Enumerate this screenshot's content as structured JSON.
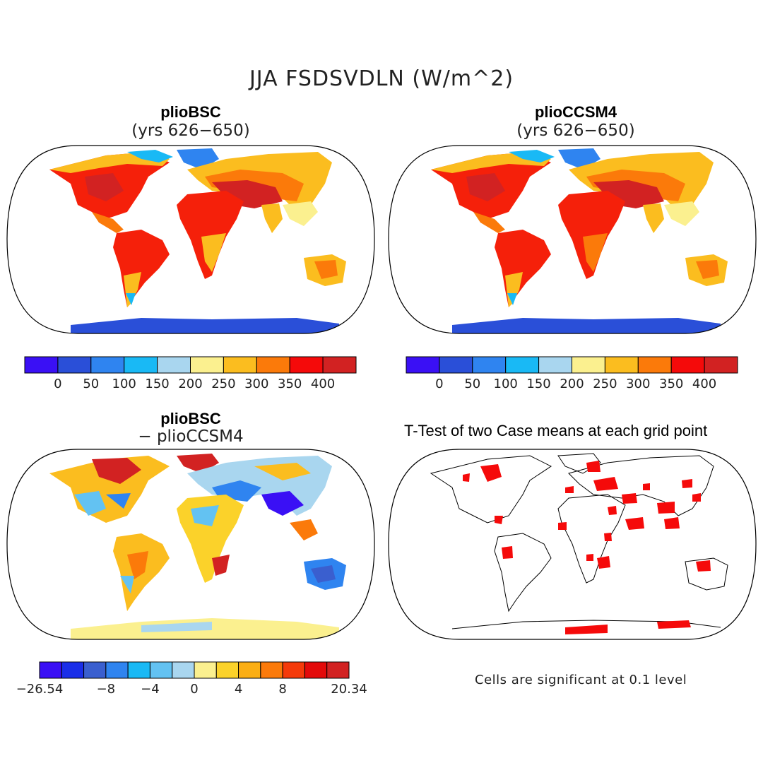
{
  "title": "JJA FSDSVDLN (W/m^2)",
  "panels": {
    "top_left": {
      "title": "plioBSC",
      "subtitle": "(yrs 626−650)"
    },
    "top_right": {
      "title": "plioCCSM4",
      "subtitle": "(yrs 626−650)"
    },
    "bottom_left": {
      "title": "plioBSC",
      "subtitle": "− plioCCSM4"
    },
    "bottom_right": {
      "title": "T-Test of two Case means at each grid point",
      "note": "Cells are significant at 0.1 level"
    }
  },
  "colorbar_abs": {
    "labels": [
      "0",
      "50",
      "100",
      "150",
      "200",
      "250",
      "300",
      "350",
      "400"
    ],
    "colors": [
      "#3a10f5",
      "#2a4fd8",
      "#2f84f0",
      "#19b9f5",
      "#a9d6ef",
      "#fbf08f",
      "#fbbd1f",
      "#fb7a0a",
      "#f50a0a",
      "#d22222"
    ]
  },
  "colorbar_diff": {
    "labels": [
      "−26.54",
      "−8",
      "−4",
      "0",
      "4",
      "8",
      "20.34"
    ],
    "colors": [
      "#3a10f5",
      "#1a2ee8",
      "#3a5fcf",
      "#2f84f0",
      "#19b9f5",
      "#63c2f2",
      "#a9d6ef",
      "#fbf08f",
      "#fbd22a",
      "#fbae14",
      "#fb7a0a",
      "#f53a0a",
      "#e30a0a",
      "#d22222"
    ]
  },
  "chart_data": [
    {
      "type": "map",
      "title": "plioBSC (yrs 626−650)",
      "variable": "JJA FSDSVDLN",
      "units": "W/m^2",
      "colorbar_levels": [
        0,
        50,
        100,
        150,
        200,
        250,
        300,
        350,
        400
      ]
    },
    {
      "type": "map",
      "title": "plioCCSM4 (yrs 626−650)",
      "variable": "JJA FSDSVDLN",
      "units": "W/m^2",
      "colorbar_levels": [
        0,
        50,
        100,
        150,
        200,
        250,
        300,
        350,
        400
      ]
    },
    {
      "type": "map",
      "title": "plioBSC − plioCCSM4",
      "variable": "JJA FSDSVDLN difference",
      "units": "W/m^2",
      "colorbar_min": -26.54,
      "colorbar_max": 20.34,
      "colorbar_labels": [
        -8,
        -4,
        0,
        4,
        8
      ]
    },
    {
      "type": "map",
      "title": "T-Test of two Case means at each grid point",
      "note": "Cells are significant at 0.1 level"
    }
  ]
}
